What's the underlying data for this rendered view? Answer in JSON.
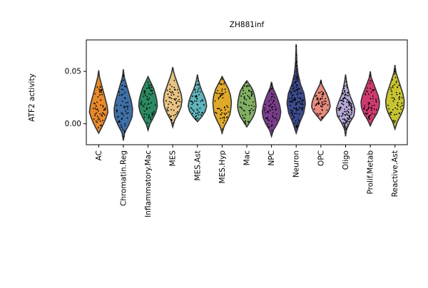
{
  "chart_data": {
    "type": "violin",
    "title": "ZH881inf",
    "ylabel": "ATF2 activity",
    "xlabel": "",
    "ylim": [
      -0.02,
      0.08
    ],
    "yticks": [
      0.0,
      0.05
    ],
    "ytick_labels": [
      "0.00",
      "0.05"
    ],
    "grid": false,
    "legend": "none",
    "categories": [
      "AC",
      "Chromatin.Reg",
      "Inflammatory.Mac",
      "MES",
      "MES.Ast",
      "MES.Hyp",
      "Mac",
      "NPC",
      "Neuron",
      "OPC",
      "Oligo",
      "Prolif.Metab",
      "Reactive.Ast"
    ],
    "colors": [
      "#e8892b",
      "#3e6fa6",
      "#2b8a62",
      "#e8c382",
      "#5fb3bc",
      "#e0a92b",
      "#82b063",
      "#7a3d8c",
      "#3d4a8c",
      "#e88a7c",
      "#b7a9d8",
      "#cf3b70",
      "#c8c431"
    ],
    "violins": [
      {
        "name": "AC",
        "min": -0.009,
        "max": 0.051,
        "median": 0.014,
        "profile": [
          0.4,
          0.75,
          1.0,
          0.9,
          0.7,
          0.5,
          0.3,
          0.1
        ]
      },
      {
        "name": "Chromatin.Reg",
        "min": -0.016,
        "max": 0.052,
        "median": 0.019,
        "profile": [
          0.15,
          0.6,
          0.95,
          1.0,
          0.85,
          0.6,
          0.35,
          0.1
        ]
      },
      {
        "name": "Inflammatory.Mac",
        "min": -0.006,
        "max": 0.045,
        "median": 0.022,
        "profile": [
          0.2,
          0.55,
          0.85,
          1.0,
          0.95,
          0.8,
          0.6,
          0.3
        ]
      },
      {
        "name": "MES",
        "min": -0.003,
        "max": 0.054,
        "median": 0.026,
        "profile": [
          0.2,
          0.6,
          0.9,
          1.0,
          0.9,
          0.65,
          0.4,
          0.15
        ]
      },
      {
        "name": "MES.Ast",
        "min": 0.002,
        "max": 0.047,
        "median": 0.019,
        "profile": [
          0.5,
          0.85,
          1.0,
          0.9,
          0.7,
          0.45,
          0.25,
          0.1
        ]
      },
      {
        "name": "MES.Hyp",
        "min": -0.009,
        "max": 0.045,
        "median": 0.016,
        "profile": [
          0.2,
          0.55,
          0.85,
          0.95,
          1.0,
          0.9,
          0.7,
          0.35
        ]
      },
      {
        "name": "Mac",
        "min": -0.003,
        "max": 0.041,
        "median": 0.019,
        "profile": [
          0.35,
          0.7,
          0.9,
          1.0,
          0.95,
          0.85,
          0.7,
          0.4
        ]
      },
      {
        "name": "NPC",
        "min": -0.012,
        "max": 0.04,
        "median": 0.015,
        "profile": [
          0.2,
          0.6,
          0.9,
          1.0,
          0.9,
          0.7,
          0.45,
          0.15
        ]
      },
      {
        "name": "Neuron",
        "min": -0.009,
        "max": 0.076,
        "median": 0.018,
        "profile": [
          0.35,
          0.8,
          1.0,
          0.85,
          0.45,
          0.2,
          0.08,
          0.04
        ]
      },
      {
        "name": "OPC",
        "min": 0.003,
        "max": 0.042,
        "median": 0.018,
        "profile": [
          0.4,
          0.8,
          1.0,
          0.95,
          0.8,
          0.6,
          0.35,
          0.1
        ]
      },
      {
        "name": "Oligo",
        "min": -0.012,
        "max": 0.047,
        "median": 0.017,
        "profile": [
          0.1,
          0.45,
          0.9,
          1.0,
          0.75,
          0.45,
          0.25,
          0.1
        ]
      },
      {
        "name": "Prolif.Metab",
        "min": -0.002,
        "max": 0.05,
        "median": 0.021,
        "profile": [
          0.3,
          0.7,
          0.95,
          1.0,
          0.85,
          0.6,
          0.35,
          0.1
        ]
      },
      {
        "name": "Reactive.Ast",
        "min": -0.005,
        "max": 0.056,
        "median": 0.021,
        "profile": [
          0.25,
          0.65,
          0.95,
          1.0,
          0.85,
          0.6,
          0.35,
          0.1
        ]
      }
    ]
  }
}
